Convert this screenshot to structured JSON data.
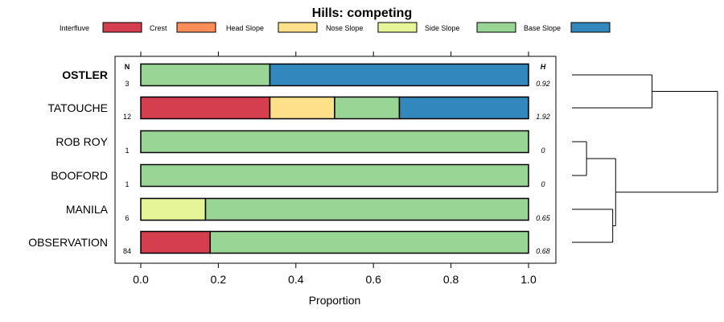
{
  "chart_data": {
    "type": "bar",
    "orientation": "horizontal",
    "stacked": true,
    "title": "Hills: competing",
    "xlabel": "Proportion",
    "ylabel": "",
    "xlim": [
      0,
      1
    ],
    "x_ticks": [
      "0.0",
      "0.2",
      "0.4",
      "0.6",
      "0.8",
      "1.0"
    ],
    "n_header": "N",
    "h_header": "H",
    "legend_placement": "top",
    "legend": [
      {
        "name": "Interfluve",
        "color": "#D53E4F"
      },
      {
        "name": "Crest",
        "color": "#FC8D59"
      },
      {
        "name": "Head Slope",
        "color": "#FEE08B"
      },
      {
        "name": "Nose Slope",
        "color": "#E6F598"
      },
      {
        "name": "Side Slope",
        "color": "#99D594"
      },
      {
        "name": "Base Slope",
        "color": "#3288BD"
      }
    ],
    "rows": [
      {
        "label": "OSTLER",
        "bold": true,
        "n": "3",
        "h": "0.92",
        "segments": [
          {
            "series": "Side Slope",
            "value": 0.333
          },
          {
            "series": "Base Slope",
            "value": 0.667
          }
        ]
      },
      {
        "label": "TATOUCHE",
        "bold": false,
        "n": "12",
        "h": "1.92",
        "segments": [
          {
            "series": "Interfluve",
            "value": 0.333
          },
          {
            "series": "Head Slope",
            "value": 0.167
          },
          {
            "series": "Side Slope",
            "value": 0.167
          },
          {
            "series": "Base Slope",
            "value": 0.333
          }
        ]
      },
      {
        "label": "ROB ROY",
        "bold": false,
        "n": "1",
        "h": "0",
        "segments": [
          {
            "series": "Side Slope",
            "value": 1.0
          }
        ]
      },
      {
        "label": "BOOFORD",
        "bold": false,
        "n": "1",
        "h": "0",
        "segments": [
          {
            "series": "Side Slope",
            "value": 1.0
          }
        ]
      },
      {
        "label": "MANILA",
        "bold": false,
        "n": "6",
        "h": "0.65",
        "segments": [
          {
            "series": "Nose Slope",
            "value": 0.167
          },
          {
            "series": "Side Slope",
            "value": 0.833
          }
        ]
      },
      {
        "label": "OBSERVATION",
        "bold": false,
        "n": "84",
        "h": "0.68",
        "segments": [
          {
            "series": "Interfluve",
            "value": 0.179
          },
          {
            "series": "Side Slope",
            "value": 0.821
          }
        ]
      }
    ],
    "dendrogram": {
      "merges": [
        {
          "a": "ROB ROY",
          "b": "BOOFORD",
          "height": 0.1
        },
        {
          "a": "MANILA",
          "b": "OBSERVATION",
          "height": 0.28
        },
        {
          "a": "m0",
          "b": "m1",
          "height": 0.3
        },
        {
          "a": "OSTLER",
          "b": "TATOUCHE",
          "height": 0.55
        },
        {
          "a": "m3",
          "b": "m2",
          "height": 1.0
        }
      ]
    }
  }
}
